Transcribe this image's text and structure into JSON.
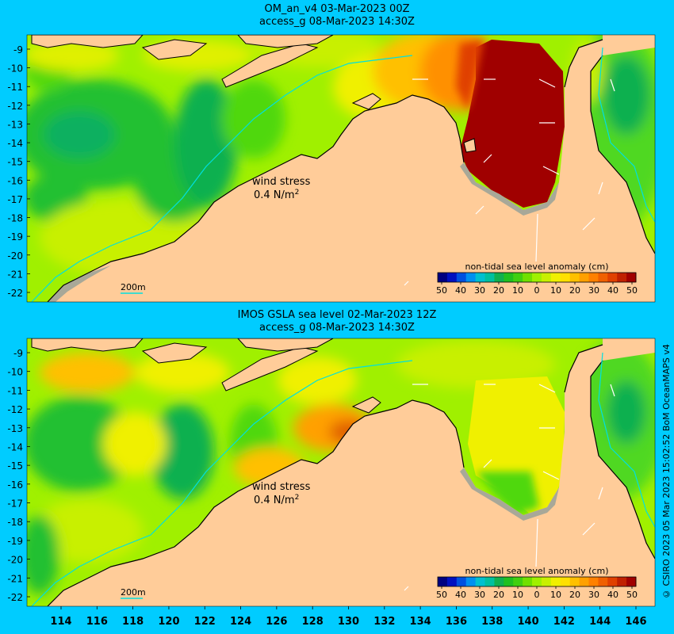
{
  "panels": [
    {
      "title_line1": "OM_an_v4  03-Mar-2023 00Z",
      "title_line2": "access_g 08-Mar-2023 14:30Z"
    },
    {
      "title_line1": "IMOS GSLA sea level  02-Mar-2023 12Z",
      "title_line2": "access_g 08-Mar-2023 14:30Z"
    }
  ],
  "wind_label_line1": "wind stress",
  "wind_label_line2": "0.4 N/m",
  "wind_label_sup": "2",
  "depth_label": "200m",
  "colorbar": {
    "title": "non-tidal sea level anomaly (cm)",
    "ticks": [
      "50",
      "40",
      "30",
      "20",
      "10",
      "0",
      "10",
      "20",
      "30",
      "40",
      "50"
    ],
    "colors": [
      "#000080",
      "#0010c0",
      "#0050e0",
      "#0090f0",
      "#00c0d0",
      "#00c0a0",
      "#10b050",
      "#20c020",
      "#40d010",
      "#70e000",
      "#a0f000",
      "#c8f000",
      "#f0f000",
      "#ffe000",
      "#ffc000",
      "#ffa000",
      "#ff8000",
      "#f06000",
      "#e04000",
      "#c02000",
      "#a00000"
    ]
  },
  "y_ticks": [
    "-9",
    "-10",
    "-11",
    "-12",
    "-13",
    "-14",
    "-15",
    "-16",
    "-17",
    "-18",
    "-19",
    "-20",
    "-21",
    "-22"
  ],
  "x_ticks": [
    "114",
    "116",
    "118",
    "120",
    "122",
    "124",
    "126",
    "128",
    "130",
    "132",
    "134",
    "136",
    "138",
    "140",
    "142",
    "144",
    "146"
  ],
  "credit": "© CSIRO 2023   05 Mar 2023 15:02:52 BoM OceanMAPS v4",
  "colors": {
    "background": "#00ccff",
    "land": "#ffcc99",
    "shelf": "#a8a898",
    "contour": "#00e0e0"
  }
}
